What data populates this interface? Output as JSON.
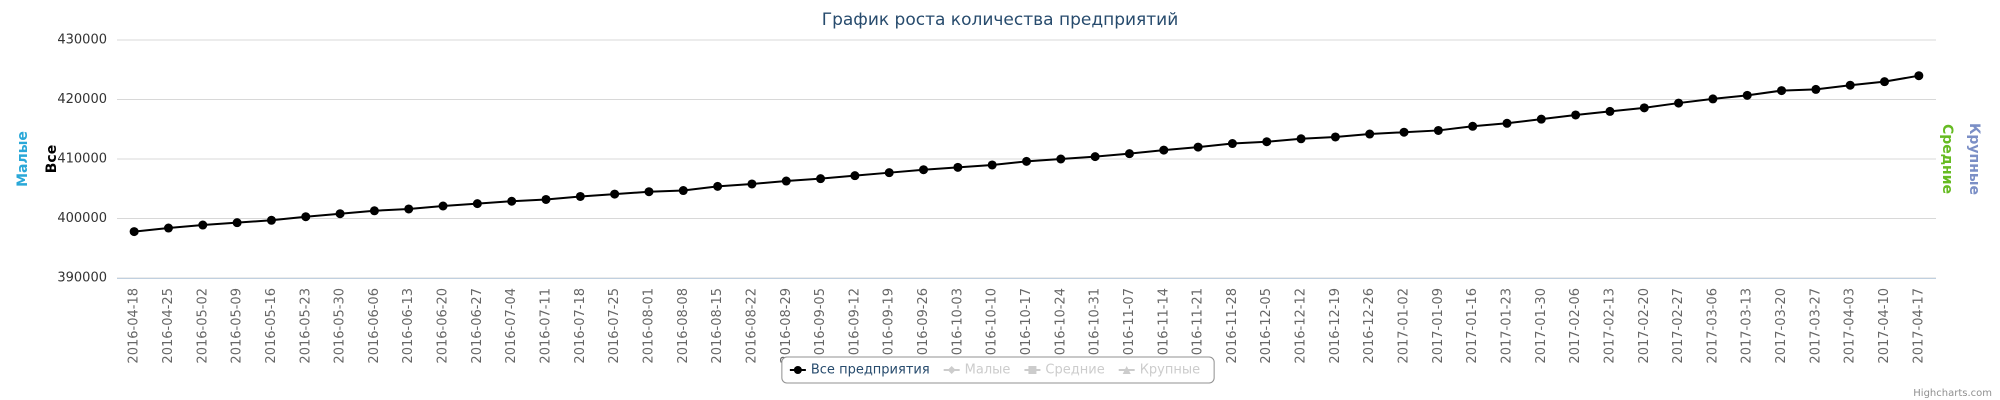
{
  "chart_data": {
    "type": "line",
    "title": "График роста количества предприятий",
    "credits": "Highcharts.com",
    "categories": [
      "2016-04-18",
      "2016-04-25",
      "2016-05-02",
      "2016-05-09",
      "2016-05-16",
      "2016-05-23",
      "2016-05-30",
      "2016-06-06",
      "2016-06-13",
      "2016-06-20",
      "2016-06-27",
      "2016-07-04",
      "2016-07-11",
      "2016-07-18",
      "2016-07-25",
      "2016-08-01",
      "2016-08-08",
      "2016-08-15",
      "2016-08-22",
      "2016-08-29",
      "2016-09-05",
      "2016-09-12",
      "2016-09-19",
      "2016-09-26",
      "2016-10-03",
      "2016-10-10",
      "2016-10-17",
      "2016-10-24",
      "2016-10-31",
      "2016-11-07",
      "2016-11-14",
      "2016-11-21",
      "2016-11-28",
      "2016-12-05",
      "2016-12-12",
      "2016-12-19",
      "2016-12-26",
      "2017-01-02",
      "2017-01-09",
      "2017-01-16",
      "2017-01-23",
      "2017-01-30",
      "2017-02-06",
      "2017-02-13",
      "2017-02-20",
      "2017-02-27",
      "2017-03-06",
      "2017-03-13",
      "2017-03-20",
      "2017-03-27",
      "2017-04-03",
      "2017-04-10",
      "2017-04-17"
    ],
    "series": [
      {
        "name": "Все предприятия",
        "color": "#000000",
        "marker": "circle",
        "visible": true,
        "values": [
          397800,
          398400,
          398900,
          399300,
          399700,
          400300,
          400800,
          401300,
          401600,
          402100,
          402500,
          402900,
          403200,
          403700,
          404100,
          404500,
          404700,
          405400,
          405800,
          406300,
          406700,
          407200,
          407700,
          408200,
          408600,
          409000,
          409600,
          410000,
          410400,
          410900,
          411500,
          412000,
          412600,
          412900,
          413400,
          413700,
          414200,
          414500,
          414800,
          415500,
          416000,
          416700,
          417400,
          418000,
          418600,
          419400,
          420100,
          420700,
          421500,
          421700,
          422400,
          423000,
          424000
        ]
      },
      {
        "name": "Малые",
        "marker": "diamond",
        "visible": false
      },
      {
        "name": "Средние",
        "marker": "square",
        "visible": false
      },
      {
        "name": "Крупные",
        "marker": "triangle",
        "visible": false
      }
    ],
    "y_axes": [
      {
        "title": "Малые",
        "color": "#2aa8d8",
        "side": "left"
      },
      {
        "title": "Все",
        "color": "#000000",
        "side": "left"
      },
      {
        "title": "Средние",
        "color": "#66bb22",
        "side": "right"
      },
      {
        "title": "Крупные",
        "color": "#7b8fc6",
        "side": "right"
      }
    ],
    "ylim": [
      390000,
      430000
    ],
    "yticks": [
      390000,
      400000,
      410000,
      420000,
      430000
    ],
    "grid": true
  }
}
